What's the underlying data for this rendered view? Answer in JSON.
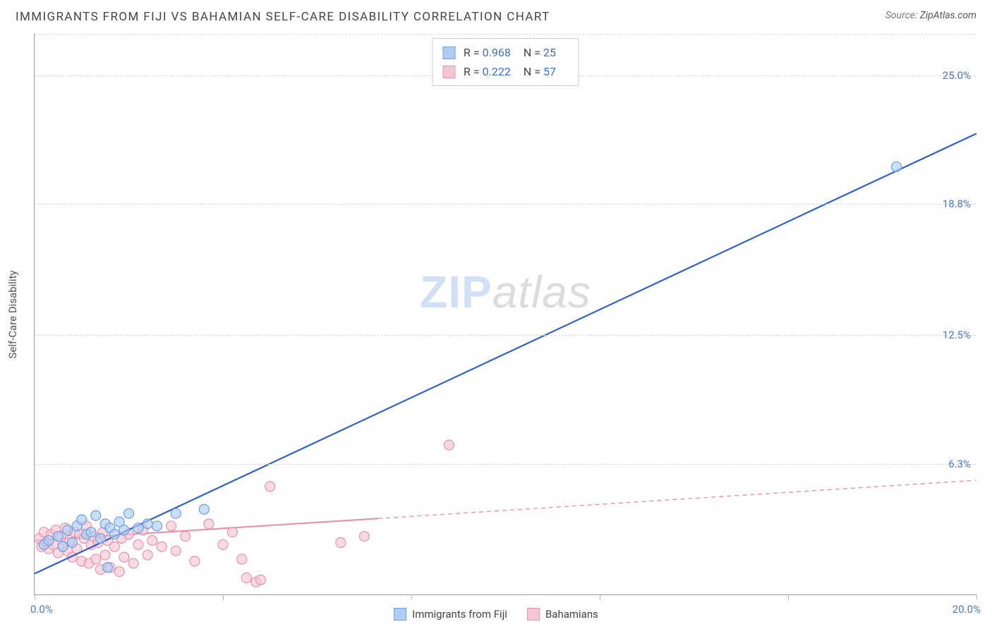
{
  "header": {
    "title": "IMMIGRANTS FROM FIJI VS BAHAMIAN SELF-CARE DISABILITY CORRELATION CHART",
    "source_prefix": "Source:",
    "source_name": "ZipAtlas.com"
  },
  "watermark": {
    "part1": "ZIP",
    "part2": "atlas"
  },
  "chart": {
    "type": "scatter",
    "background_color": "#ffffff",
    "grid_color": "#d9d9d9",
    "axis_color": "#999999",
    "y_axis_title": "Self-Care Disability",
    "xlim": [
      0,
      20
    ],
    "ylim": [
      0,
      27
    ],
    "x_ticks": [
      0,
      4,
      8,
      12,
      16,
      20
    ],
    "x_tick_labels": {
      "min": "0.0%",
      "max": "20.0%"
    },
    "y_ticks": [
      6.3,
      12.5,
      18.8,
      25.0
    ],
    "y_tick_labels": [
      "6.3%",
      "12.5%",
      "18.8%",
      "25.0%"
    ],
    "y_label_color": "#4a76d4",
    "label_fontsize": 15,
    "marker_radius": 7,
    "marker_stroke_width": 1.2,
    "line_width_solid": 2.2,
    "line_width_dashed": 1.4,
    "series": [
      {
        "id": "fiji",
        "label": "Immigrants from Fiji",
        "color_fill": "#aecdf4",
        "color_stroke": "#6f9fe0",
        "R": "0.968",
        "N": "25",
        "trend": {
          "x1": 0,
          "y1": 1.0,
          "x2": 20,
          "y2": 22.2,
          "solid_until_x": 20
        },
        "points": [
          [
            0.2,
            2.4
          ],
          [
            0.3,
            2.6
          ],
          [
            0.5,
            2.8
          ],
          [
            0.6,
            2.3
          ],
          [
            0.7,
            3.1
          ],
          [
            0.8,
            2.5
          ],
          [
            0.9,
            3.3
          ],
          [
            1.0,
            3.6
          ],
          [
            1.1,
            2.9
          ],
          [
            1.2,
            3.0
          ],
          [
            1.3,
            3.8
          ],
          [
            1.4,
            2.7
          ],
          [
            1.5,
            3.4
          ],
          [
            1.55,
            1.3
          ],
          [
            1.6,
            3.2
          ],
          [
            1.7,
            2.9
          ],
          [
            1.8,
            3.5
          ],
          [
            1.9,
            3.1
          ],
          [
            2.0,
            3.9
          ],
          [
            2.2,
            3.2
          ],
          [
            2.4,
            3.4
          ],
          [
            2.6,
            3.3
          ],
          [
            3.0,
            3.9
          ],
          [
            3.6,
            4.1
          ],
          [
            18.3,
            20.6
          ]
        ]
      },
      {
        "id": "bahamians",
        "label": "Bahamians",
        "color_fill": "#f6c6d4",
        "color_stroke": "#e893ab",
        "R": "0.222",
        "N": "57",
        "trend": {
          "x1": 0,
          "y1": 2.6,
          "x2": 20,
          "y2": 5.5,
          "solid_until_x": 7.3
        },
        "points": [
          [
            0.1,
            2.7
          ],
          [
            0.15,
            2.3
          ],
          [
            0.2,
            3.0
          ],
          [
            0.25,
            2.5
          ],
          [
            0.3,
            2.2
          ],
          [
            0.35,
            2.9
          ],
          [
            0.4,
            2.4
          ],
          [
            0.45,
            3.1
          ],
          [
            0.5,
            2.0
          ],
          [
            0.55,
            2.8
          ],
          [
            0.6,
            2.3
          ],
          [
            0.65,
            3.2
          ],
          [
            0.7,
            2.1
          ],
          [
            0.75,
            2.6
          ],
          [
            0.8,
            1.8
          ],
          [
            0.85,
            3.0
          ],
          [
            0.9,
            2.2
          ],
          [
            0.95,
            2.9
          ],
          [
            1.0,
            1.6
          ],
          [
            1.05,
            2.7
          ],
          [
            1.1,
            3.3
          ],
          [
            1.15,
            1.5
          ],
          [
            1.2,
            2.4
          ],
          [
            1.25,
            2.8
          ],
          [
            1.3,
            1.7
          ],
          [
            1.35,
            2.5
          ],
          [
            1.4,
            1.2
          ],
          [
            1.45,
            3.0
          ],
          [
            1.5,
            1.9
          ],
          [
            1.55,
            2.6
          ],
          [
            1.6,
            1.3
          ],
          [
            1.7,
            2.3
          ],
          [
            1.8,
            1.1
          ],
          [
            1.85,
            2.7
          ],
          [
            1.9,
            1.8
          ],
          [
            2.0,
            2.9
          ],
          [
            2.1,
            1.5
          ],
          [
            2.2,
            2.4
          ],
          [
            2.3,
            3.1
          ],
          [
            2.4,
            1.9
          ],
          [
            2.5,
            2.6
          ],
          [
            2.7,
            2.3
          ],
          [
            2.9,
            3.3
          ],
          [
            3.0,
            2.1
          ],
          [
            3.2,
            2.8
          ],
          [
            3.4,
            1.6
          ],
          [
            3.7,
            3.4
          ],
          [
            4.0,
            2.4
          ],
          [
            4.2,
            3.0
          ],
          [
            4.4,
            1.7
          ],
          [
            4.5,
            0.8
          ],
          [
            4.7,
            0.6
          ],
          [
            4.8,
            0.7
          ],
          [
            5.0,
            5.2
          ],
          [
            6.5,
            2.5
          ],
          [
            7.0,
            2.8
          ],
          [
            8.8,
            7.2
          ]
        ]
      }
    ]
  },
  "legend_top": {
    "r_label": "R =",
    "n_label": "N ="
  }
}
